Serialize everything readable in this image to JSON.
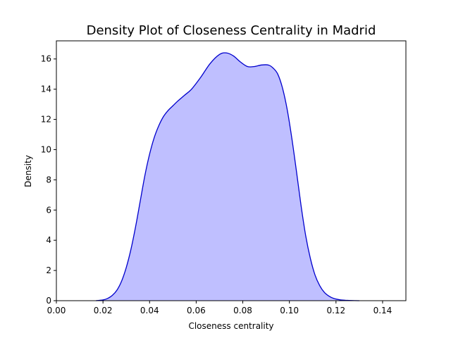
{
  "chart_data": {
    "type": "area",
    "title": "Density Plot of Closeness Centrality in Madrid",
    "xlabel": "Closeness centrality",
    "ylabel": "Density",
    "xlim": [
      0.0,
      0.15
    ],
    "ylim": [
      0,
      17.2
    ],
    "x_ticks": [
      "0.00",
      "0.02",
      "0.04",
      "0.06",
      "0.08",
      "0.10",
      "0.12",
      "0.14"
    ],
    "y_ticks": [
      "0",
      "2",
      "4",
      "6",
      "8",
      "10",
      "12",
      "14",
      "16"
    ],
    "grid": false,
    "legend": "none",
    "line_color": "#0000cd",
    "fill_color": "#bfbfff",
    "series": [
      {
        "x": [
          0.017,
          0.02,
          0.022,
          0.024,
          0.026,
          0.028,
          0.03,
          0.032,
          0.034,
          0.036,
          0.038,
          0.04,
          0.042,
          0.044,
          0.046,
          0.048,
          0.05,
          0.052,
          0.055,
          0.058,
          0.062,
          0.066,
          0.07,
          0.073,
          0.076,
          0.079,
          0.082,
          0.085,
          0.088,
          0.091,
          0.093,
          0.095,
          0.097,
          0.099,
          0.101,
          0.103,
          0.105,
          0.107,
          0.109,
          0.111,
          0.113,
          0.115,
          0.117,
          0.119,
          0.122,
          0.125,
          0.128,
          0.13
        ],
        "y": [
          0.0,
          0.05,
          0.15,
          0.35,
          0.7,
          1.3,
          2.2,
          3.4,
          4.9,
          6.6,
          8.3,
          9.7,
          10.8,
          11.6,
          12.2,
          12.6,
          12.9,
          13.2,
          13.6,
          14.0,
          14.8,
          15.7,
          16.3,
          16.4,
          16.2,
          15.8,
          15.5,
          15.5,
          15.6,
          15.6,
          15.4,
          15.0,
          14.1,
          12.7,
          10.8,
          8.6,
          6.3,
          4.3,
          2.8,
          1.7,
          1.0,
          0.55,
          0.3,
          0.15,
          0.05,
          0.02,
          0.005,
          0.0
        ]
      }
    ]
  }
}
